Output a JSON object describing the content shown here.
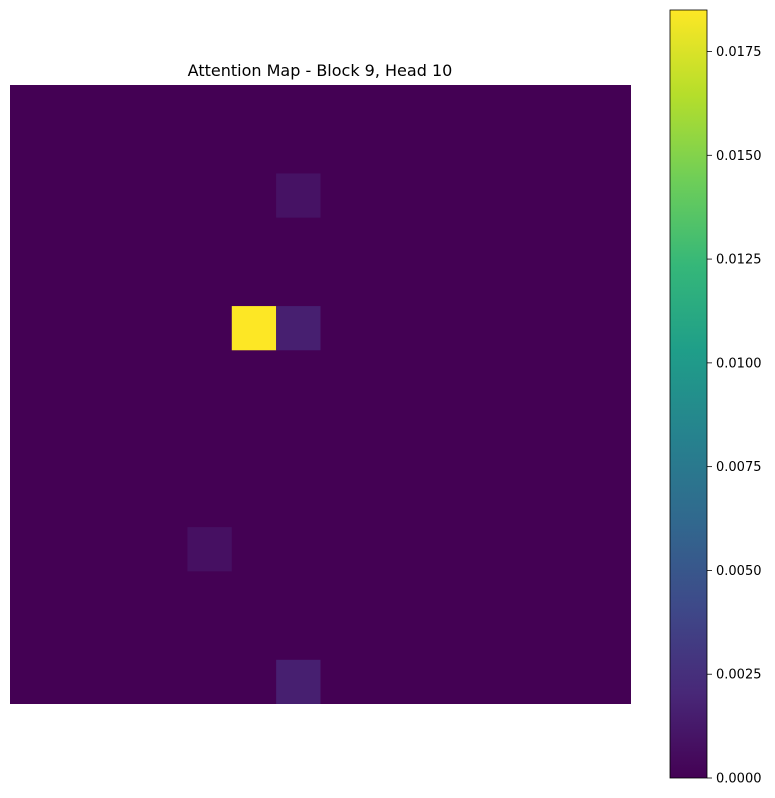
{
  "chart_data": {
    "type": "heatmap",
    "title": "Attention Map - Block 9, Head 10",
    "xlabel": "",
    "ylabel": "",
    "axes_visible": false,
    "grid": false,
    "colormap": "viridis",
    "colormap_stops": [
      "#440154",
      "#482878",
      "#3e4989",
      "#31688e",
      "#26828e",
      "#1f9e89",
      "#35b779",
      "#6ece58",
      "#b5de2b",
      "#fde725"
    ],
    "vmin": 0.0,
    "vmax": 0.0185,
    "rows": 14,
    "cols": 14,
    "background_value": 0.0,
    "cells": [
      {
        "row": 2,
        "col": 6,
        "value": 0.0009
      },
      {
        "row": 5,
        "col": 5,
        "value": 0.0185
      },
      {
        "row": 5,
        "col": 6,
        "value": 0.0016
      },
      {
        "row": 10,
        "col": 4,
        "value": 0.0008
      },
      {
        "row": 13,
        "col": 6,
        "value": 0.0016
      }
    ],
    "colorbar": {
      "position": "right",
      "ticks": [
        "0.0000",
        "0.0025",
        "0.0050",
        "0.0075",
        "0.0100",
        "0.0125",
        "0.0150",
        "0.0175"
      ]
    }
  }
}
